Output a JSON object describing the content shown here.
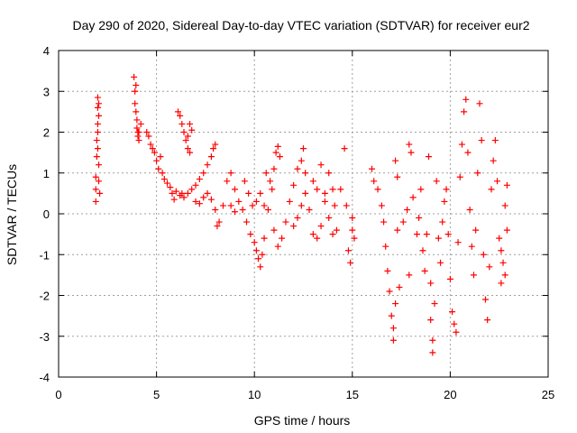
{
  "chart_data": {
    "type": "scatter",
    "title": "Day 290 of 2020, Sidereal Day-to-day VTEC variation (SDTVAR) for receiver eur2",
    "xlabel": "GPS time / hours",
    "ylabel": "SDTVAR / TECUs",
    "xlim": [
      0,
      25
    ],
    "ylim": [
      -4,
      4
    ],
    "xticks": [
      "0",
      "5",
      "10",
      "15",
      "20",
      "25"
    ],
    "yticks": [
      "-4",
      "-3",
      "-2",
      "-1",
      "0",
      "1",
      "2",
      "3",
      "4"
    ],
    "grid": true,
    "marker": "plus",
    "color": "#ff0000",
    "series": [
      {
        "name": "SDTVAR",
        "points": [
          [
            1.9,
            0.3
          ],
          [
            1.9,
            0.6
          ],
          [
            1.9,
            0.9
          ],
          [
            1.95,
            1.4
          ],
          [
            1.95,
            1.8
          ],
          [
            2.0,
            2.2
          ],
          [
            2.0,
            2.6
          ],
          [
            2.0,
            2.85
          ],
          [
            2.05,
            2.7
          ],
          [
            2.05,
            2.4
          ],
          [
            2.0,
            2.0
          ],
          [
            2.0,
            1.6
          ],
          [
            2.05,
            1.2
          ],
          [
            2.05,
            0.8
          ],
          [
            2.1,
            0.5
          ],
          [
            3.85,
            3.35
          ],
          [
            3.9,
            3.0
          ],
          [
            3.9,
            2.7
          ],
          [
            3.95,
            2.5
          ],
          [
            4.0,
            2.3
          ],
          [
            4.0,
            2.1
          ],
          [
            4.05,
            1.9
          ],
          [
            4.1,
            1.8
          ],
          [
            4.1,
            2.0
          ],
          [
            4.2,
            2.2
          ],
          [
            3.95,
            3.15
          ],
          [
            4.05,
            2.0
          ],
          [
            4.5,
            2.0
          ],
          [
            4.6,
            1.9
          ],
          [
            4.7,
            1.7
          ],
          [
            4.8,
            1.6
          ],
          [
            4.9,
            1.5
          ],
          [
            5.0,
            1.3
          ],
          [
            5.1,
            1.1
          ],
          [
            5.2,
            1.4
          ],
          [
            5.3,
            1.0
          ],
          [
            5.4,
            0.85
          ],
          [
            5.55,
            0.75
          ],
          [
            5.7,
            0.65
          ],
          [
            5.8,
            0.5
          ],
          [
            5.9,
            0.35
          ],
          [
            6.0,
            0.55
          ],
          [
            6.1,
            2.5
          ],
          [
            6.2,
            2.4
          ],
          [
            6.3,
            2.2
          ],
          [
            6.4,
            2.0
          ],
          [
            6.5,
            1.8
          ],
          [
            6.6,
            1.6
          ],
          [
            6.7,
            1.5
          ],
          [
            6.8,
            2.05
          ],
          [
            6.7,
            2.2
          ],
          [
            6.6,
            1.9
          ],
          [
            6.2,
            0.45
          ],
          [
            6.3,
            0.5
          ],
          [
            6.4,
            0.4
          ],
          [
            6.6,
            0.5
          ],
          [
            6.8,
            0.6
          ],
          [
            7.0,
            0.7
          ],
          [
            7.2,
            0.85
          ],
          [
            7.4,
            1.0
          ],
          [
            7.6,
            1.2
          ],
          [
            7.8,
            1.4
          ],
          [
            7.9,
            1.6
          ],
          [
            8.0,
            1.7
          ],
          [
            7.0,
            0.3
          ],
          [
            7.2,
            0.25
          ],
          [
            7.4,
            0.4
          ],
          [
            7.6,
            0.5
          ],
          [
            7.8,
            0.35
          ],
          [
            8.0,
            0.1
          ],
          [
            8.1,
            -0.3
          ],
          [
            8.2,
            -0.2
          ],
          [
            8.4,
            0.2
          ],
          [
            8.6,
            0.8
          ],
          [
            8.8,
            1.0
          ],
          [
            9.0,
            0.6
          ],
          [
            8.8,
            0.2
          ],
          [
            9.0,
            0.05
          ],
          [
            9.2,
            0.3
          ],
          [
            9.4,
            0.1
          ],
          [
            9.6,
            -0.2
          ],
          [
            9.8,
            -0.5
          ],
          [
            10.0,
            -0.7
          ],
          [
            10.1,
            -0.9
          ],
          [
            10.2,
            -1.1
          ],
          [
            10.3,
            -1.3
          ],
          [
            10.4,
            -1.0
          ],
          [
            10.5,
            -0.6
          ],
          [
            9.5,
            0.8
          ],
          [
            9.7,
            0.5
          ],
          [
            9.9,
            0.2
          ],
          [
            10.1,
            0.3
          ],
          [
            10.3,
            0.5
          ],
          [
            10.5,
            0.2
          ],
          [
            10.7,
            0.1
          ],
          [
            10.9,
            0.6
          ],
          [
            11.0,
            1.1
          ],
          [
            11.1,
            1.5
          ],
          [
            11.2,
            1.65
          ],
          [
            11.3,
            1.4
          ],
          [
            10.6,
            1.0
          ],
          [
            10.8,
            0.8
          ],
          [
            11.0,
            -0.4
          ],
          [
            11.2,
            -0.8
          ],
          [
            11.4,
            -0.6
          ],
          [
            11.6,
            -0.2
          ],
          [
            11.8,
            0.3
          ],
          [
            12.0,
            0.7
          ],
          [
            12.2,
            1.1
          ],
          [
            12.4,
            1.3
          ],
          [
            12.5,
            1.6
          ],
          [
            12.6,
            1.0
          ],
          [
            12.0,
            -0.3
          ],
          [
            12.2,
            -0.1
          ],
          [
            12.4,
            0.2
          ],
          [
            12.6,
            0.5
          ],
          [
            12.8,
            0.1
          ],
          [
            13.0,
            -0.5
          ],
          [
            13.2,
            -0.6
          ],
          [
            13.4,
            -0.3
          ],
          [
            13.6,
            0.5
          ],
          [
            13.8,
            1.0
          ],
          [
            14.0,
            0.6
          ],
          [
            14.1,
            0.2
          ],
          [
            13.0,
            0.8
          ],
          [
            13.2,
            0.6
          ],
          [
            13.4,
            1.2
          ],
          [
            13.6,
            0.3
          ],
          [
            13.8,
            -0.1
          ],
          [
            14.0,
            -0.5
          ],
          [
            14.2,
            -0.4
          ],
          [
            14.4,
            0.6
          ],
          [
            14.6,
            1.6
          ],
          [
            14.7,
            0.2
          ],
          [
            14.8,
            -0.9
          ],
          [
            14.9,
            -1.2
          ],
          [
            15.0,
            -0.4
          ],
          [
            15.0,
            -0.1
          ],
          [
            15.1,
            -0.6
          ],
          [
            16.0,
            1.1
          ],
          [
            16.1,
            0.8
          ],
          [
            16.3,
            0.6
          ],
          [
            16.5,
            0.2
          ],
          [
            16.6,
            -0.2
          ],
          [
            16.7,
            -0.8
          ],
          [
            16.8,
            -1.4
          ],
          [
            16.9,
            -1.9
          ],
          [
            17.0,
            -2.5
          ],
          [
            17.1,
            -2.8
          ],
          [
            17.1,
            -3.1
          ],
          [
            17.2,
            -2.2
          ],
          [
            17.2,
            1.3
          ],
          [
            17.3,
            0.9
          ],
          [
            17.3,
            -0.4
          ],
          [
            17.4,
            -1.8
          ],
          [
            17.6,
            -0.2
          ],
          [
            17.8,
            0.1
          ],
          [
            17.9,
            -1.5
          ],
          [
            17.9,
            1.7
          ],
          [
            18.0,
            1.5
          ],
          [
            18.1,
            0.4
          ],
          [
            18.3,
            -0.5
          ],
          [
            18.4,
            -0.1
          ],
          [
            18.5,
            0.6
          ],
          [
            18.6,
            -0.9
          ],
          [
            18.7,
            -1.4
          ],
          [
            18.8,
            -0.5
          ],
          [
            18.9,
            1.4
          ],
          [
            19.0,
            -1.7
          ],
          [
            19.0,
            -2.6
          ],
          [
            19.1,
            -3.1
          ],
          [
            19.1,
            -3.4
          ],
          [
            19.2,
            -2.2
          ],
          [
            19.3,
            0.8
          ],
          [
            19.4,
            -0.6
          ],
          [
            19.5,
            -1.2
          ],
          [
            19.6,
            -0.2
          ],
          [
            19.7,
            0.3
          ],
          [
            19.8,
            0.6
          ],
          [
            19.9,
            -0.5
          ],
          [
            20.0,
            -1.6
          ],
          [
            20.1,
            -2.4
          ],
          [
            20.2,
            -2.7
          ],
          [
            20.3,
            -2.9
          ],
          [
            20.4,
            -0.7
          ],
          [
            20.5,
            0.9
          ],
          [
            20.6,
            1.7
          ],
          [
            20.7,
            2.5
          ],
          [
            20.8,
            2.8
          ],
          [
            20.9,
            1.5
          ],
          [
            21.0,
            0.1
          ],
          [
            21.1,
            -0.8
          ],
          [
            21.2,
            -1.5
          ],
          [
            21.3,
            -0.4
          ],
          [
            21.4,
            1.0
          ],
          [
            21.5,
            2.7
          ],
          [
            21.6,
            1.8
          ],
          [
            21.7,
            -1.0
          ],
          [
            21.8,
            -2.1
          ],
          [
            21.9,
            -2.6
          ],
          [
            22.0,
            -1.3
          ],
          [
            22.1,
            0.6
          ],
          [
            22.2,
            1.3
          ],
          [
            22.3,
            1.8
          ],
          [
            22.4,
            0.8
          ],
          [
            22.5,
            -0.6
          ],
          [
            22.6,
            -1.7
          ],
          [
            22.7,
            -1.2
          ],
          [
            22.8,
            0.2
          ],
          [
            22.9,
            0.7
          ],
          [
            22.9,
            -0.4
          ],
          [
            22.8,
            -1.5
          ],
          [
            22.6,
            -0.9
          ]
        ]
      }
    ]
  }
}
